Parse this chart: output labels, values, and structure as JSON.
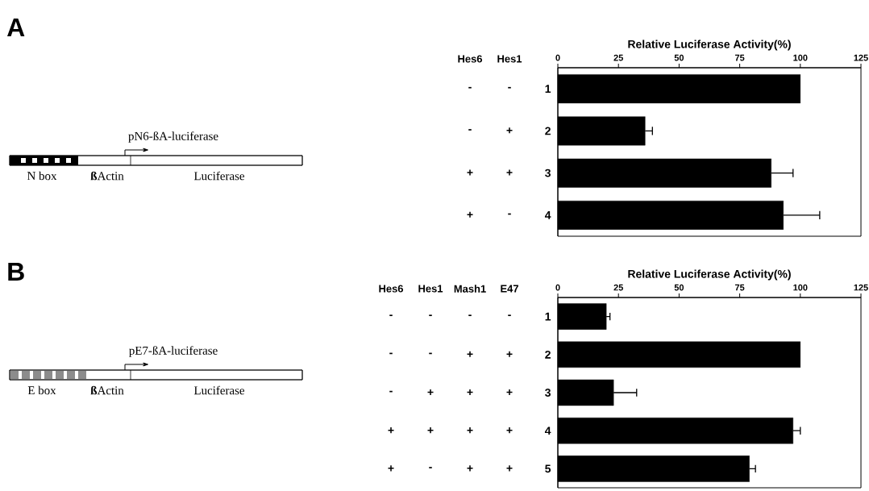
{
  "chart_data": [
    {
      "type": "bar",
      "orientation": "horizontal",
      "xlabel": "Relative Luciferase Activity(%)",
      "color": "#000000",
      "categories": [
        "1",
        "2",
        "3",
        "4"
      ],
      "values": [
        100,
        36,
        88,
        93
      ],
      "errors": [
        null,
        [
          36,
          39
        ],
        [
          88,
          97
        ],
        [
          93,
          108
        ]
      ],
      "xlim": [
        0,
        125
      ],
      "xticks": [
        {
          "value": 0,
          "label": "0"
        },
        {
          "value": 25,
          "label": "25"
        },
        {
          "value": 50,
          "label": "50"
        },
        {
          "value": 75,
          "label": "75"
        },
        {
          "value": 100,
          "label": "100"
        },
        {
          "value": 125,
          "label": "125"
        }
      ],
      "grid": false,
      "annotations": [
        "Hes6",
        "Hes1",
        "-",
        "-",
        "-",
        "+",
        "+",
        "+",
        "+",
        "-",
        "pN6-ßA-luciferase",
        "N box",
        "**ß**Actin",
        "Luciferase",
        "A"
      ]
    },
    {
      "type": "bar",
      "orientation": "horizontal",
      "xlabel": "Relative Luciferase Activity(%)",
      "color": "#000000",
      "categories": [
        "1",
        "2",
        "3",
        "4",
        "5"
      ],
      "values": [
        20,
        100,
        23,
        97,
        79
      ],
      "errors": [
        [
          20,
          21.5
        ],
        null,
        [
          23,
          32.5
        ],
        [
          97,
          100
        ],
        [
          79,
          81.5
        ]
      ],
      "xlim": [
        0,
        125
      ],
      "xticks": [
        {
          "value": 0,
          "label": "0"
        },
        {
          "value": 25,
          "label": "25"
        },
        {
          "value": 50,
          "label": "50"
        },
        {
          "value": 75,
          "label": "75"
        },
        {
          "value": 100,
          "label": "100"
        },
        {
          "value": 125,
          "label": "125"
        }
      ],
      "grid": false,
      "annotations": [
        "Hes6",
        "Hes1",
        "Mash1",
        "E47",
        "-",
        "-",
        "-",
        "-",
        "-",
        "-",
        "+",
        "+",
        "-",
        "+",
        "+",
        "+",
        "+",
        "+",
        "+",
        "+",
        "+",
        "-",
        "+",
        "+",
        "pE7-ßA-luciferase",
        "E box",
        "**ß**Actin",
        "Luciferase",
        "B"
      ]
    }
  ]
}
